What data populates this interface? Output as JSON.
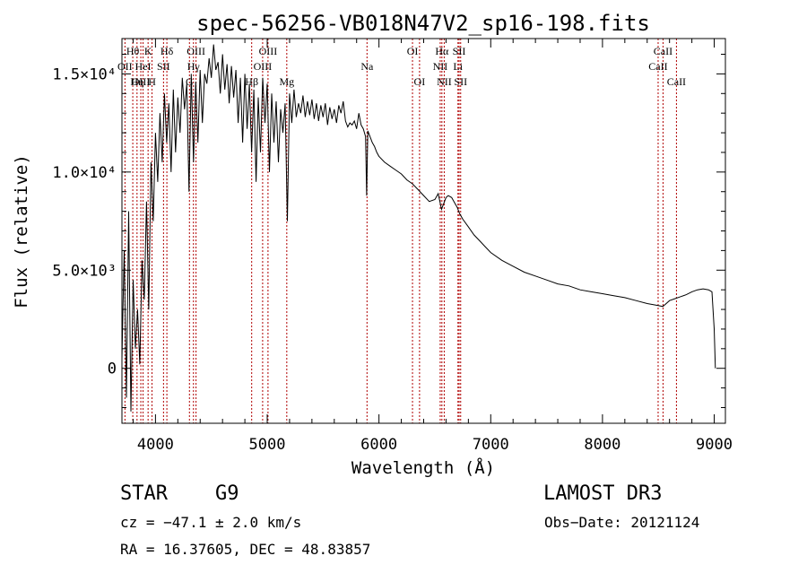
{
  "chart_data": {
    "type": "line",
    "title": "spec-56256-VB018N47V2_sp16-198.fits",
    "xlabel": "Wavelength (Å)",
    "ylabel": "Flux (relative)",
    "xlim": [
      3700,
      9100
    ],
    "ylim": [
      -2800,
      16800
    ],
    "x_ticks": [
      {
        "value": 4000,
        "label": "4000"
      },
      {
        "value": 5000,
        "label": "5000"
      },
      {
        "value": 6000,
        "label": "6000"
      },
      {
        "value": 7000,
        "label": "7000"
      },
      {
        "value": 8000,
        "label": "8000"
      },
      {
        "value": 9000,
        "label": "9000"
      }
    ],
    "y_ticks": [
      {
        "value": 0,
        "label": "0"
      },
      {
        "value": 5000,
        "label": "5.0×10³"
      },
      {
        "value": 10000,
        "label": "1.0×10⁴"
      },
      {
        "value": 15000,
        "label": "1.5×10⁴"
      }
    ],
    "series": [
      {
        "name": "spectrum",
        "x": [
          3700,
          3720,
          3740,
          3760,
          3780,
          3800,
          3820,
          3840,
          3860,
          3880,
          3900,
          3920,
          3940,
          3960,
          3980,
          4000,
          4020,
          4040,
          4060,
          4080,
          4100,
          4120,
          4140,
          4160,
          4180,
          4200,
          4220,
          4240,
          4260,
          4280,
          4300,
          4320,
          4340,
          4360,
          4380,
          4400,
          4420,
          4440,
          4460,
          4480,
          4500,
          4520,
          4540,
          4560,
          4580,
          4600,
          4620,
          4640,
          4660,
          4680,
          4700,
          4720,
          4740,
          4760,
          4780,
          4800,
          4820,
          4840,
          4860,
          4880,
          4900,
          4920,
          4940,
          4960,
          4980,
          5000,
          5020,
          5040,
          5060,
          5080,
          5100,
          5120,
          5140,
          5160,
          5180,
          5200,
          5220,
          5240,
          5260,
          5280,
          5300,
          5320,
          5340,
          5360,
          5380,
          5400,
          5420,
          5440,
          5460,
          5480,
          5500,
          5520,
          5540,
          5560,
          5580,
          5600,
          5620,
          5640,
          5660,
          5680,
          5700,
          5720,
          5740,
          5760,
          5780,
          5800,
          5820,
          5840,
          5860,
          5880,
          5890,
          5900,
          5920,
          5940,
          5960,
          5980,
          6000,
          6050,
          6100,
          6150,
          6200,
          6250,
          6300,
          6350,
          6400,
          6450,
          6500,
          6530,
          6560,
          6580,
          6600,
          6620,
          6650,
          6680,
          6700,
          6720,
          6750,
          6800,
          6850,
          6900,
          6950,
          7000,
          7100,
          7200,
          7300,
          7400,
          7500,
          7600,
          7700,
          7800,
          7900,
          8000,
          8100,
          8200,
          8300,
          8400,
          8450,
          8500,
          8540,
          8560,
          8600,
          8650,
          8700,
          8750,
          8800,
          8850,
          8900,
          8950,
          8980,
          9000,
          9010
        ],
        "y": [
          500,
          6000,
          -1500,
          8000,
          -2200,
          4500,
          1000,
          3000,
          200,
          5500,
          3500,
          8500,
          3000,
          10500,
          7500,
          12000,
          9500,
          13000,
          10500,
          14000,
          11500,
          13500,
          10000,
          14200,
          11000,
          13800,
          12000,
          14800,
          13200,
          14500,
          9000,
          15000,
          10500,
          14600,
          11500,
          15200,
          12500,
          15000,
          14500,
          15800,
          14800,
          16500,
          15200,
          15600,
          14000,
          16000,
          14200,
          15500,
          13500,
          15400,
          13800,
          15200,
          12500,
          14800,
          11500,
          15000,
          12200,
          14500,
          11000,
          14200,
          9500,
          13800,
          11000,
          14800,
          12500,
          14500,
          10000,
          14000,
          11500,
          13600,
          10500,
          13200,
          12000,
          13500,
          7500,
          14000,
          12500,
          14200,
          12800,
          13500,
          13000,
          13900,
          12800,
          13600,
          12900,
          13700,
          12700,
          13500,
          12600,
          13400,
          12800,
          13500,
          12400,
          13300,
          12700,
          13200,
          12500,
          13400,
          13000,
          13600,
          12600,
          12300,
          12500,
          12400,
          12600,
          12200,
          13000,
          12400,
          12200,
          11800,
          8800,
          12100,
          11800,
          11500,
          11300,
          11000,
          10800,
          10500,
          10300,
          10100,
          9900,
          9600,
          9400,
          9100,
          8800,
          8500,
          8600,
          8900,
          8100,
          8400,
          8700,
          8800,
          8700,
          8400,
          8200,
          7900,
          7600,
          7200,
          6800,
          6500,
          6200,
          5900,
          5500,
          5200,
          4900,
          4700,
          4500,
          4300,
          4200,
          4000,
          3900,
          3800,
          3700,
          3600,
          3450,
          3300,
          3250,
          3200,
          3150,
          3250,
          3450,
          3550,
          3650,
          3750,
          3900,
          4000,
          4050,
          4000,
          3900,
          2000,
          0
        ]
      }
    ],
    "line_markers": [
      {
        "name": "Hθ",
        "wavelength": 3797,
        "row": 0
      },
      {
        "name": "OII",
        "wavelength": 3727,
        "row": 1
      },
      {
        "name": "HeI",
        "wavelength": 3889,
        "row": 1
      },
      {
        "name": "OIII",
        "wavelength": 3869,
        "row": 2
      },
      {
        "name": "Hη",
        "wavelength": 3835,
        "row": 2
      },
      {
        "name": "K",
        "wavelength": 3934,
        "row": 0
      },
      {
        "name": "H",
        "wavelength": 3969,
        "row": 2
      },
      {
        "name": "Hδ",
        "wavelength": 4102,
        "row": 0
      },
      {
        "name": "SII",
        "wavelength": 4072,
        "row": 1
      },
      {
        "name": "OIII",
        "wavelength": 4363,
        "row": 0
      },
      {
        "name": "Hγ",
        "wavelength": 4340,
        "row": 1
      },
      {
        "name": "G",
        "wavelength": 4304,
        "row": 2
      },
      {
        "name": "Hβ",
        "wavelength": 4861,
        "row": 2
      },
      {
        "name": "OIII",
        "wavelength": 5007,
        "row": 0
      },
      {
        "name": "OIII",
        "wavelength": 4959,
        "row": 1
      },
      {
        "name": "Mg",
        "wavelength": 5175,
        "row": 2
      },
      {
        "name": "Na",
        "wavelength": 5893,
        "row": 1
      },
      {
        "name": "OI",
        "wavelength": 6300,
        "row": 0
      },
      {
        "name": "OI",
        "wavelength": 6363,
        "row": 2
      },
      {
        "name": "Hα",
        "wavelength": 6563,
        "row": 0
      },
      {
        "name": "NII",
        "wavelength": 6548,
        "row": 1
      },
      {
        "name": "NII",
        "wavelength": 6584,
        "row": 2
      },
      {
        "name": "SII",
        "wavelength": 6717,
        "row": 0
      },
      {
        "name": "Li",
        "wavelength": 6707,
        "row": 1
      },
      {
        "name": "SII",
        "wavelength": 6731,
        "row": 2
      },
      {
        "name": "CaII",
        "wavelength": 8542,
        "row": 0
      },
      {
        "name": "CaII",
        "wavelength": 8498,
        "row": 1
      },
      {
        "name": "CaII",
        "wavelength": 8662,
        "row": 2
      }
    ]
  },
  "info": {
    "class": "STAR",
    "subclass": "G9",
    "survey": "LAMOST DR3",
    "redshift": "cz = −47.1 ± 2.0 km/s",
    "obs_date": "Obs−Date: 20121124",
    "coords": "RA =  16.37605, DEC =  48.83857"
  }
}
